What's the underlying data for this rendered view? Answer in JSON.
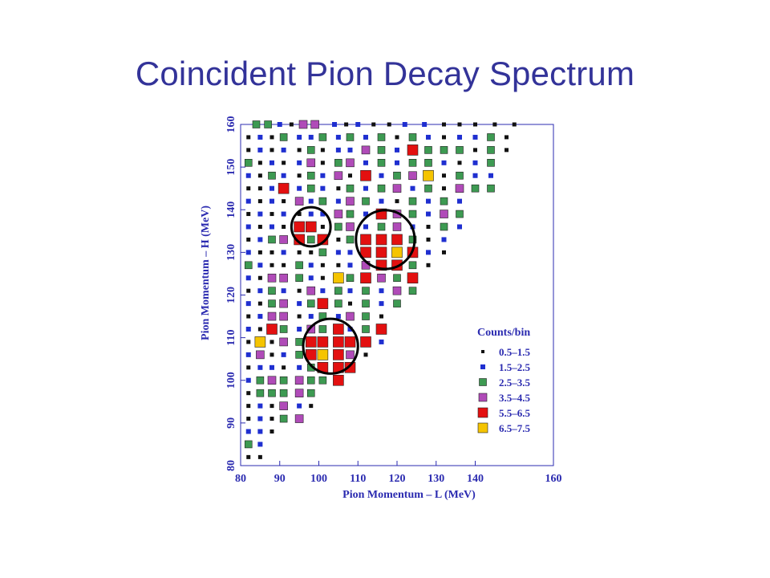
{
  "slide": {
    "title": "Coincident Pion Decay Spectrum"
  },
  "chart_data": {
    "type": "scatter",
    "title": "",
    "xlabel": "Pion Momentum – L (MeV)",
    "ylabel": "Pion Momentum – H (MeV)",
    "xlim": [
      80,
      160
    ],
    "ylim": [
      80,
      160
    ],
    "x_tick_labels": [
      "80",
      "90",
      "100",
      "110",
      "120",
      "130",
      "140",
      "160"
    ],
    "y_tick_labels": [
      "80",
      "90",
      "100",
      "110",
      "120",
      "130",
      "140",
      "150",
      "160"
    ],
    "legend": {
      "title": "Counts/bin",
      "placement": "bottom-right",
      "entries": [
        {
          "label": "0.5–1.5",
          "level": 1
        },
        {
          "label": "1.5–2.5",
          "level": 2
        },
        {
          "label": "2.5–3.5",
          "level": 3
        },
        {
          "label": "3.5–4.5",
          "level": 4
        },
        {
          "label": "5.5–6.5",
          "level": 6
        },
        {
          "label": "6.5–7.5",
          "level": 7
        }
      ]
    },
    "level_colors": {
      "1": "#111111",
      "2": "#1f2fd0",
      "3": "#3d9a52",
      "4": "#b04bb8",
      "5": "#e31010",
      "6": "#e31010",
      "7": "#f5c400"
    },
    "points": [
      [
        84,
        160,
        3
      ],
      [
        87,
        160,
        3
      ],
      [
        90,
        160,
        2
      ],
      [
        93,
        160,
        1
      ],
      [
        96,
        160,
        4
      ],
      [
        99,
        160,
        4
      ],
      [
        104,
        160,
        2
      ],
      [
        107,
        160,
        1
      ],
      [
        110,
        160,
        2
      ],
      [
        114,
        160,
        1
      ],
      [
        118,
        160,
        1
      ],
      [
        122,
        160,
        2
      ],
      [
        127,
        160,
        2
      ],
      [
        132,
        160,
        1
      ],
      [
        136,
        160,
        1
      ],
      [
        140,
        160,
        1
      ],
      [
        145,
        160,
        1
      ],
      [
        150,
        160,
        1
      ],
      [
        82,
        157,
        1
      ],
      [
        85,
        157,
        2
      ],
      [
        88,
        157,
        1
      ],
      [
        91,
        157,
        3
      ],
      [
        95,
        157,
        2
      ],
      [
        98,
        157,
        2
      ],
      [
        101,
        157,
        3
      ],
      [
        105,
        157,
        2
      ],
      [
        108,
        157,
        3
      ],
      [
        112,
        157,
        2
      ],
      [
        116,
        157,
        3
      ],
      [
        120,
        157,
        1
      ],
      [
        124,
        157,
        3
      ],
      [
        128,
        157,
        2
      ],
      [
        132,
        157,
        1
      ],
      [
        136,
        157,
        2
      ],
      [
        140,
        157,
        2
      ],
      [
        144,
        157,
        3
      ],
      [
        148,
        157,
        1
      ],
      [
        82,
        154,
        1
      ],
      [
        85,
        154,
        2
      ],
      [
        88,
        154,
        1
      ],
      [
        91,
        154,
        2
      ],
      [
        95,
        154,
        1
      ],
      [
        98,
        154,
        3
      ],
      [
        101,
        154,
        1
      ],
      [
        105,
        154,
        2
      ],
      [
        108,
        154,
        2
      ],
      [
        112,
        154,
        4
      ],
      [
        116,
        154,
        3
      ],
      [
        120,
        154,
        2
      ],
      [
        124,
        154,
        5
      ],
      [
        128,
        154,
        3
      ],
      [
        132,
        154,
        3
      ],
      [
        136,
        154,
        3
      ],
      [
        140,
        154,
        1
      ],
      [
        144,
        154,
        3
      ],
      [
        148,
        154,
        1
      ],
      [
        82,
        151,
        3
      ],
      [
        85,
        151,
        1
      ],
      [
        88,
        151,
        2
      ],
      [
        91,
        151,
        1
      ],
      [
        95,
        151,
        2
      ],
      [
        98,
        151,
        4
      ],
      [
        101,
        151,
        1
      ],
      [
        105,
        151,
        3
      ],
      [
        108,
        151,
        4
      ],
      [
        112,
        151,
        2
      ],
      [
        116,
        151,
        3
      ],
      [
        120,
        151,
        2
      ],
      [
        124,
        151,
        3
      ],
      [
        128,
        151,
        3
      ],
      [
        132,
        151,
        2
      ],
      [
        136,
        151,
        1
      ],
      [
        140,
        151,
        2
      ],
      [
        144,
        151,
        3
      ],
      [
        82,
        148,
        2
      ],
      [
        85,
        148,
        1
      ],
      [
        88,
        148,
        3
      ],
      [
        91,
        148,
        2
      ],
      [
        95,
        148,
        1
      ],
      [
        98,
        148,
        3
      ],
      [
        101,
        148,
        2
      ],
      [
        105,
        148,
        4
      ],
      [
        108,
        148,
        1
      ],
      [
        112,
        148,
        5
      ],
      [
        116,
        148,
        2
      ],
      [
        120,
        148,
        3
      ],
      [
        124,
        148,
        4
      ],
      [
        128,
        148,
        7
      ],
      [
        132,
        148,
        1
      ],
      [
        136,
        148,
        3
      ],
      [
        140,
        148,
        2
      ],
      [
        144,
        148,
        2
      ],
      [
        82,
        145,
        1
      ],
      [
        85,
        145,
        1
      ],
      [
        88,
        145,
        2
      ],
      [
        91,
        145,
        5
      ],
      [
        95,
        145,
        2
      ],
      [
        98,
        145,
        3
      ],
      [
        101,
        145,
        2
      ],
      [
        105,
        145,
        1
      ],
      [
        108,
        145,
        3
      ],
      [
        112,
        145,
        2
      ],
      [
        116,
        145,
        3
      ],
      [
        120,
        145,
        4
      ],
      [
        124,
        145,
        2
      ],
      [
        128,
        145,
        3
      ],
      [
        132,
        145,
        1
      ],
      [
        136,
        145,
        4
      ],
      [
        140,
        145,
        3
      ],
      [
        144,
        145,
        3
      ],
      [
        82,
        142,
        2
      ],
      [
        85,
        142,
        1
      ],
      [
        88,
        142,
        2
      ],
      [
        91,
        142,
        1
      ],
      [
        95,
        142,
        4
      ],
      [
        98,
        142,
        2
      ],
      [
        101,
        142,
        3
      ],
      [
        105,
        142,
        2
      ],
      [
        108,
        142,
        4
      ],
      [
        112,
        142,
        3
      ],
      [
        116,
        142,
        2
      ],
      [
        120,
        142,
        1
      ],
      [
        124,
        142,
        3
      ],
      [
        128,
        142,
        2
      ],
      [
        132,
        142,
        3
      ],
      [
        136,
        142,
        2
      ],
      [
        82,
        139,
        1
      ],
      [
        85,
        139,
        2
      ],
      [
        88,
        139,
        1
      ],
      [
        91,
        139,
        2
      ],
      [
        95,
        139,
        1
      ],
      [
        98,
        139,
        2
      ],
      [
        101,
        139,
        2
      ],
      [
        105,
        139,
        4
      ],
      [
        108,
        139,
        3
      ],
      [
        112,
        139,
        2
      ],
      [
        116,
        139,
        5
      ],
      [
        120,
        139,
        4
      ],
      [
        124,
        139,
        3
      ],
      [
        128,
        139,
        2
      ],
      [
        132,
        139,
        4
      ],
      [
        136,
        139,
        3
      ],
      [
        82,
        136,
        2
      ],
      [
        85,
        136,
        1
      ],
      [
        88,
        136,
        2
      ],
      [
        91,
        136,
        1
      ],
      [
        95,
        136,
        5
      ],
      [
        98,
        136,
        5
      ],
      [
        101,
        136,
        1
      ],
      [
        105,
        136,
        3
      ],
      [
        108,
        136,
        4
      ],
      [
        112,
        136,
        2
      ],
      [
        116,
        136,
        3
      ],
      [
        120,
        136,
        4
      ],
      [
        124,
        136,
        2
      ],
      [
        128,
        136,
        1
      ],
      [
        132,
        136,
        3
      ],
      [
        136,
        136,
        2
      ],
      [
        82,
        133,
        1
      ],
      [
        85,
        133,
        2
      ],
      [
        88,
        133,
        3
      ],
      [
        91,
        133,
        4
      ],
      [
        95,
        133,
        5
      ],
      [
        98,
        133,
        3
      ],
      [
        101,
        133,
        5
      ],
      [
        105,
        133,
        1
      ],
      [
        108,
        133,
        3
      ],
      [
        112,
        133,
        5
      ],
      [
        116,
        133,
        5
      ],
      [
        120,
        133,
        5
      ],
      [
        124,
        133,
        3
      ],
      [
        128,
        133,
        1
      ],
      [
        132,
        133,
        2
      ],
      [
        82,
        130,
        2
      ],
      [
        85,
        130,
        1
      ],
      [
        88,
        130,
        1
      ],
      [
        91,
        130,
        2
      ],
      [
        95,
        130,
        1
      ],
      [
        98,
        130,
        1
      ],
      [
        101,
        130,
        3
      ],
      [
        105,
        130,
        2
      ],
      [
        108,
        130,
        2
      ],
      [
        112,
        130,
        5
      ],
      [
        116,
        130,
        5
      ],
      [
        120,
        130,
        7
      ],
      [
        124,
        130,
        5
      ],
      [
        128,
        130,
        2
      ],
      [
        132,
        130,
        1
      ],
      [
        82,
        127,
        3
      ],
      [
        85,
        127,
        2
      ],
      [
        88,
        127,
        1
      ],
      [
        91,
        127,
        1
      ],
      [
        95,
        127,
        3
      ],
      [
        98,
        127,
        2
      ],
      [
        101,
        127,
        1
      ],
      [
        105,
        127,
        1
      ],
      [
        108,
        127,
        2
      ],
      [
        112,
        127,
        4
      ],
      [
        116,
        127,
        5
      ],
      [
        120,
        127,
        5
      ],
      [
        124,
        127,
        3
      ],
      [
        128,
        127,
        1
      ],
      [
        82,
        124,
        2
      ],
      [
        85,
        124,
        1
      ],
      [
        88,
        124,
        4
      ],
      [
        91,
        124,
        4
      ],
      [
        95,
        124,
        3
      ],
      [
        98,
        124,
        2
      ],
      [
        101,
        124,
        1
      ],
      [
        105,
        124,
        7
      ],
      [
        108,
        124,
        3
      ],
      [
        112,
        124,
        5
      ],
      [
        116,
        124,
        4
      ],
      [
        120,
        124,
        3
      ],
      [
        124,
        124,
        5
      ],
      [
        82,
        121,
        1
      ],
      [
        85,
        121,
        2
      ],
      [
        88,
        121,
        3
      ],
      [
        91,
        121,
        2
      ],
      [
        95,
        121,
        1
      ],
      [
        98,
        121,
        4
      ],
      [
        101,
        121,
        2
      ],
      [
        105,
        121,
        3
      ],
      [
        108,
        121,
        2
      ],
      [
        112,
        121,
        3
      ],
      [
        116,
        121,
        2
      ],
      [
        120,
        121,
        4
      ],
      [
        124,
        121,
        3
      ],
      [
        82,
        118,
        2
      ],
      [
        85,
        118,
        1
      ],
      [
        88,
        118,
        3
      ],
      [
        91,
        118,
        4
      ],
      [
        95,
        118,
        2
      ],
      [
        98,
        118,
        3
      ],
      [
        101,
        118,
        5
      ],
      [
        105,
        118,
        3
      ],
      [
        108,
        118,
        1
      ],
      [
        112,
        118,
        3
      ],
      [
        116,
        118,
        2
      ],
      [
        120,
        118,
        3
      ],
      [
        82,
        115,
        1
      ],
      [
        85,
        115,
        2
      ],
      [
        88,
        115,
        4
      ],
      [
        91,
        115,
        4
      ],
      [
        95,
        115,
        1
      ],
      [
        98,
        115,
        2
      ],
      [
        101,
        115,
        3
      ],
      [
        105,
        115,
        2
      ],
      [
        108,
        115,
        4
      ],
      [
        112,
        115,
        3
      ],
      [
        116,
        115,
        1
      ],
      [
        82,
        112,
        2
      ],
      [
        85,
        112,
        1
      ],
      [
        88,
        112,
        5
      ],
      [
        91,
        112,
        3
      ],
      [
        95,
        112,
        2
      ],
      [
        98,
        112,
        4
      ],
      [
        101,
        112,
        3
      ],
      [
        105,
        112,
        5
      ],
      [
        108,
        112,
        2
      ],
      [
        112,
        112,
        3
      ],
      [
        116,
        112,
        5
      ],
      [
        82,
        109,
        1
      ],
      [
        85,
        109,
        7
      ],
      [
        88,
        109,
        1
      ],
      [
        91,
        109,
        4
      ],
      [
        95,
        109,
        3
      ],
      [
        98,
        109,
        5
      ],
      [
        101,
        109,
        5
      ],
      [
        105,
        109,
        5
      ],
      [
        108,
        109,
        5
      ],
      [
        112,
        109,
        5
      ],
      [
        116,
        109,
        2
      ],
      [
        82,
        106,
        2
      ],
      [
        85,
        106,
        4
      ],
      [
        88,
        106,
        1
      ],
      [
        91,
        106,
        2
      ],
      [
        95,
        106,
        3
      ],
      [
        98,
        106,
        5
      ],
      [
        101,
        106,
        7
      ],
      [
        105,
        106,
        5
      ],
      [
        108,
        106,
        4
      ],
      [
        112,
        106,
        1
      ],
      [
        82,
        103,
        1
      ],
      [
        85,
        103,
        2
      ],
      [
        88,
        103,
        2
      ],
      [
        91,
        103,
        1
      ],
      [
        95,
        103,
        2
      ],
      [
        98,
        103,
        3
      ],
      [
        101,
        103,
        5
      ],
      [
        105,
        103,
        5
      ],
      [
        108,
        103,
        5
      ],
      [
        82,
        100,
        2
      ],
      [
        85,
        100,
        3
      ],
      [
        88,
        100,
        4
      ],
      [
        91,
        100,
        3
      ],
      [
        95,
        100,
        4
      ],
      [
        98,
        100,
        3
      ],
      [
        101,
        100,
        3
      ],
      [
        105,
        100,
        5
      ],
      [
        82,
        97,
        1
      ],
      [
        85,
        97,
        3
      ],
      [
        88,
        97,
        3
      ],
      [
        91,
        97,
        3
      ],
      [
        95,
        97,
        4
      ],
      [
        98,
        97,
        3
      ],
      [
        82,
        94,
        1
      ],
      [
        85,
        94,
        2
      ],
      [
        88,
        94,
        1
      ],
      [
        91,
        94,
        4
      ],
      [
        95,
        94,
        2
      ],
      [
        98,
        94,
        1
      ],
      [
        82,
        91,
        1
      ],
      [
        85,
        91,
        2
      ],
      [
        88,
        91,
        1
      ],
      [
        91,
        91,
        3
      ],
      [
        95,
        91,
        4
      ],
      [
        82,
        88,
        2
      ],
      [
        85,
        88,
        2
      ],
      [
        88,
        88,
        1
      ],
      [
        82,
        85,
        3
      ],
      [
        85,
        85,
        2
      ],
      [
        82,
        82,
        1
      ],
      [
        85,
        82,
        1
      ]
    ],
    "circled_regions": [
      {
        "cx": 98,
        "cy": 136,
        "r": 5
      },
      {
        "cx": 117,
        "cy": 133,
        "r": 7.5
      },
      {
        "cx": 103,
        "cy": 108,
        "r": 7
      }
    ]
  }
}
